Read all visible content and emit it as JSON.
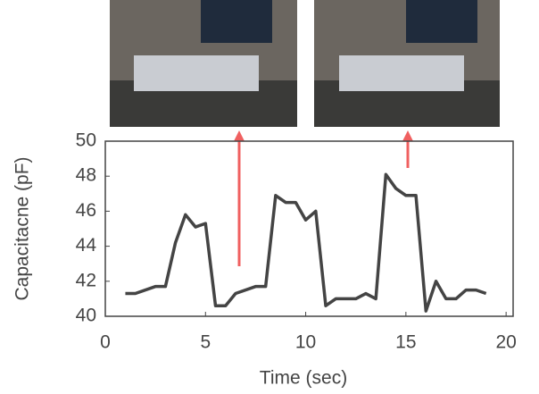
{
  "chart_data": {
    "type": "line",
    "x": [
      1,
      1.5,
      2.5,
      3,
      3.5,
      4,
      4.5,
      5,
      5.5,
      6,
      6.5,
      7.5,
      8,
      8.5,
      9,
      9.5,
      10,
      10.5,
      11,
      11.5,
      12.5,
      13,
      13.5,
      14,
      14.5,
      15,
      15.5,
      16,
      16.5,
      17,
      17.5,
      18,
      18.5,
      19
    ],
    "series": [
      {
        "color": "#444444",
        "values": [
          41.3,
          41.3,
          41.7,
          41.7,
          44.2,
          45.8,
          45.1,
          45.3,
          40.6,
          40.6,
          41.3,
          41.7,
          41.7,
          46.9,
          46.5,
          46.5,
          45.5,
          46.0,
          40.6,
          41.0,
          41.0,
          41.3,
          41.0,
          48.1,
          47.3,
          46.9,
          46.9,
          40.3,
          42.0,
          41.0,
          41.0,
          41.5,
          41.5,
          41.3
        ]
      }
    ],
    "xlim": [
      0,
      20.35
    ],
    "ylim": [
      40,
      50
    ],
    "xticks": [
      0,
      5,
      10,
      15,
      20
    ],
    "yticks": [
      40,
      42,
      44,
      46,
      48,
      50
    ],
    "x_label": "Time (sec)",
    "y_label": "Capacitacne (pF)"
  }
}
